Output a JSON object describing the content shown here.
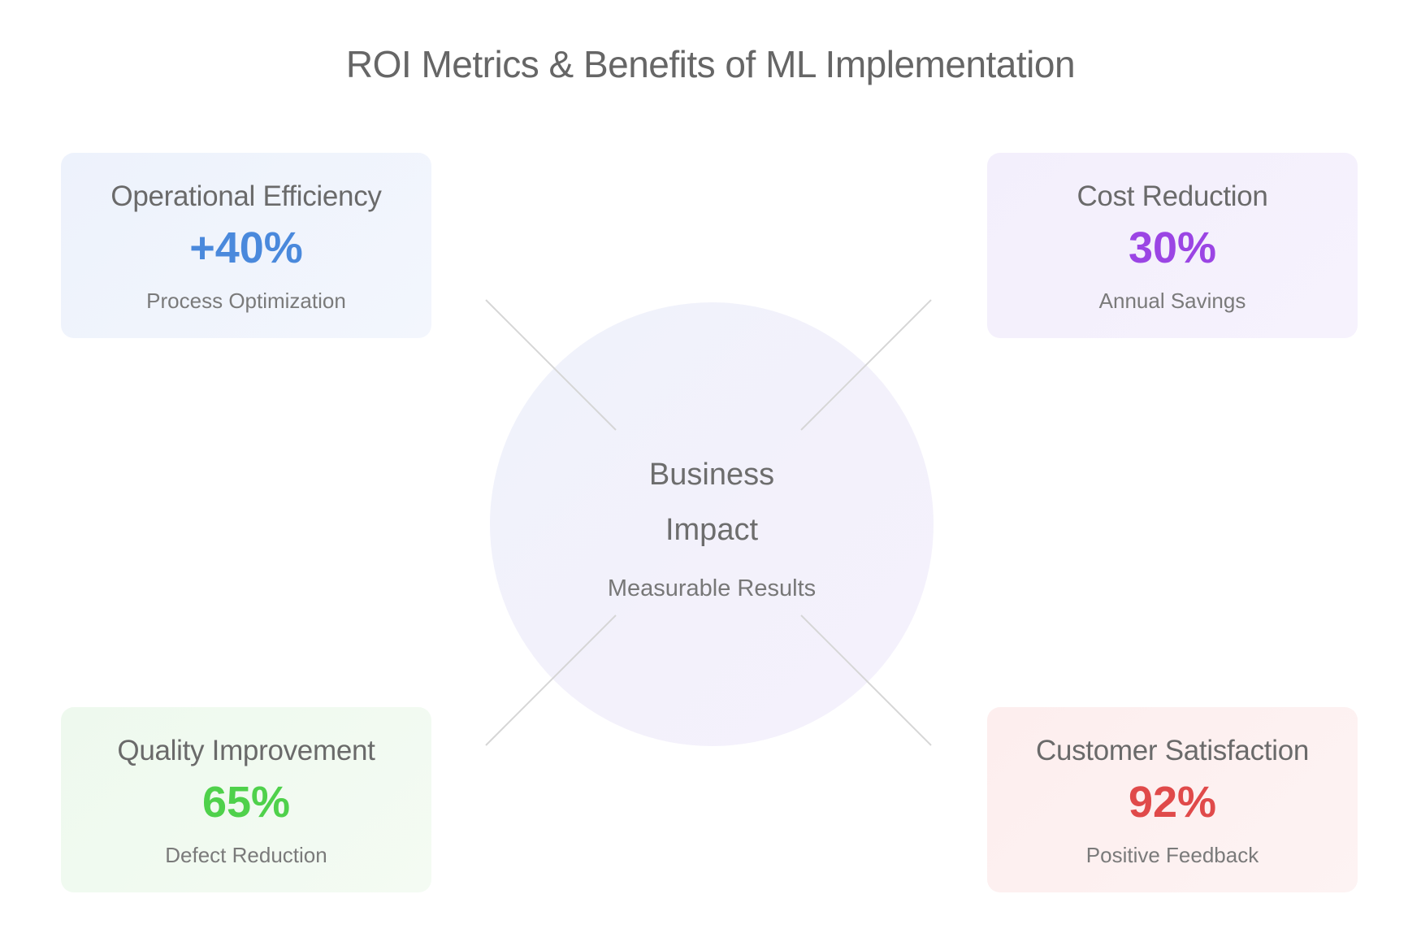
{
  "title": "ROI Metrics & Benefits of ML Implementation",
  "hub": {
    "line1": "Business",
    "line2": "Impact",
    "subtitle": "Measurable Results"
  },
  "cards": {
    "operational_efficiency": {
      "label": "Operational Efficiency",
      "value": "+40%",
      "subtitle": "Process Optimization",
      "color": "#4a89dc"
    },
    "cost_reduction": {
      "label": "Cost Reduction",
      "value": "30%",
      "subtitle": "Annual Savings",
      "color": "#9b45e4"
    },
    "quality_improvement": {
      "label": "Quality Improvement",
      "value": "65%",
      "subtitle": "Defect Reduction",
      "color": "#4fd14b"
    },
    "customer_satisfaction": {
      "label": "Customer Satisfaction",
      "value": "92%",
      "subtitle": "Positive Feedback",
      "color": "#e04a4a"
    }
  }
}
